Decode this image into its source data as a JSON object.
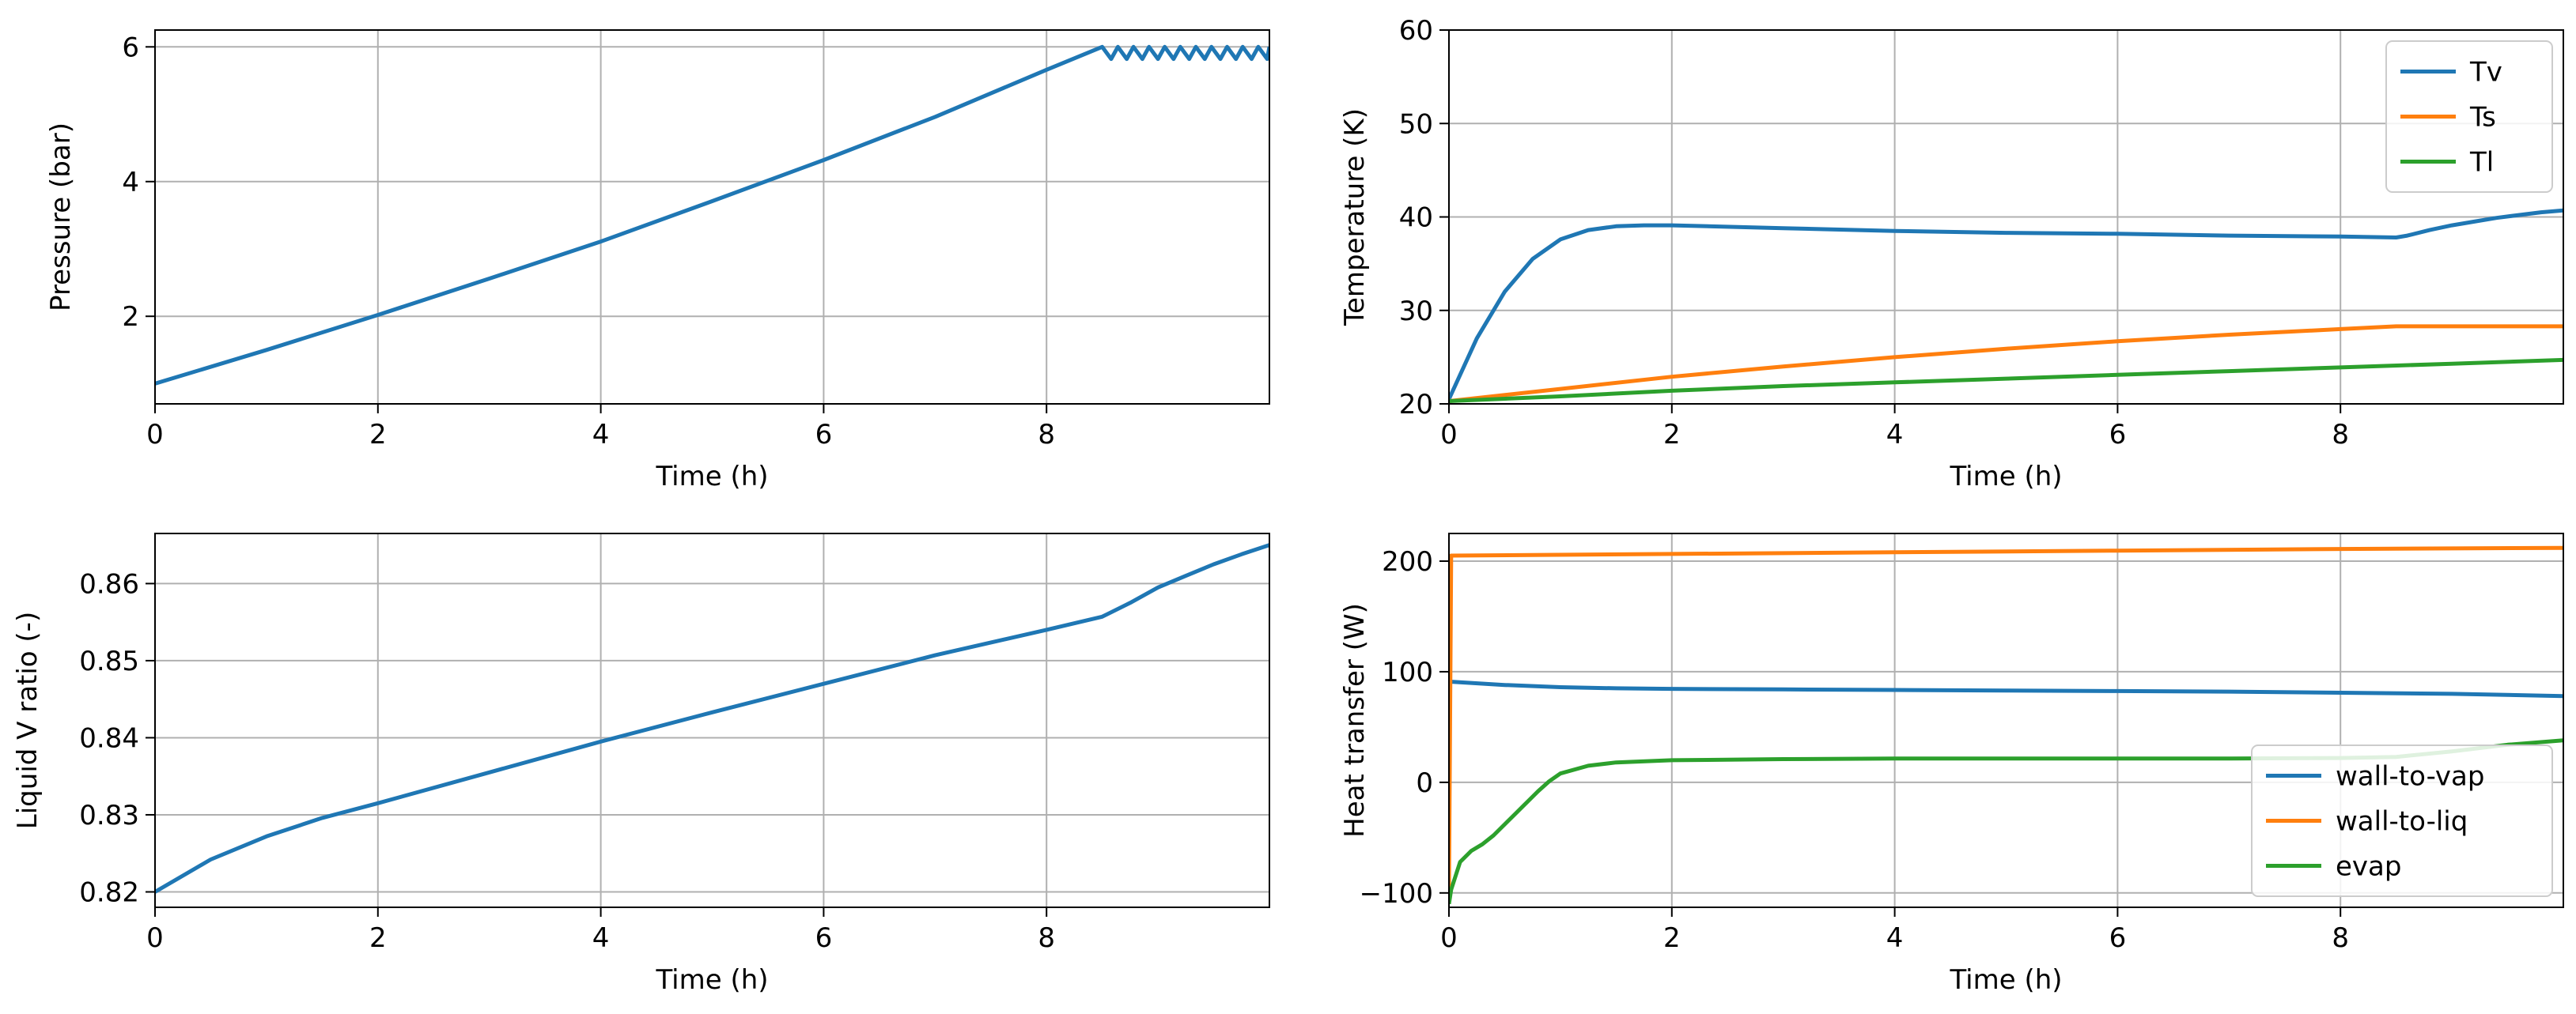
{
  "chart_data": [
    {
      "type": "line",
      "panel": "pressure",
      "xlabel": "Time (h)",
      "ylabel": "Pressure (bar)",
      "xlim": [
        0,
        10
      ],
      "ylim": [
        0.7,
        6.25
      ],
      "xticks": [
        0,
        2,
        4,
        6,
        8
      ],
      "yticks": [
        2,
        4,
        6
      ],
      "grid": true,
      "legend": null,
      "series": [
        {
          "name": "Pressure",
          "color": "#1f77b4",
          "x": [
            0,
            1,
            2,
            3,
            4,
            5,
            6,
            7,
            8,
            8.5,
            8.58,
            8.64,
            8.72,
            8.78,
            8.86,
            8.92,
            9.0,
            9.06,
            9.14,
            9.2,
            9.28,
            9.34,
            9.42,
            9.48,
            9.56,
            9.62,
            9.7,
            9.76,
            9.84,
            9.9,
            9.98,
            10.0
          ],
          "y": [
            1.0,
            1.5,
            2.02,
            2.56,
            3.11,
            3.71,
            4.32,
            4.96,
            5.66,
            6.0,
            5.82,
            6.0,
            5.82,
            6.0,
            5.82,
            6.0,
            5.82,
            6.0,
            5.82,
            6.0,
            5.82,
            6.0,
            5.82,
            6.0,
            5.82,
            6.0,
            5.82,
            6.0,
            5.82,
            6.0,
            5.82,
            6.0
          ]
        }
      ]
    },
    {
      "type": "line",
      "panel": "temperature",
      "xlabel": "Time (h)",
      "ylabel": "Temperature (K)",
      "xlim": [
        0,
        10
      ],
      "ylim": [
        20,
        60
      ],
      "xticks": [
        0,
        2,
        4,
        6,
        8
      ],
      "yticks": [
        20,
        30,
        40,
        50,
        60
      ],
      "grid": true,
      "legend": "upper-right",
      "series": [
        {
          "name": "Tv",
          "color": "#1f77b4",
          "x": [
            0,
            0.25,
            0.5,
            0.75,
            1.0,
            1.25,
            1.5,
            1.75,
            2.0,
            3.0,
            4.0,
            5.0,
            6.0,
            7.0,
            8.0,
            8.5,
            8.6,
            8.8,
            9.0,
            9.2,
            9.4,
            9.6,
            9.8,
            10.0
          ],
          "y": [
            20.5,
            27.0,
            32.0,
            35.5,
            37.6,
            38.6,
            39.0,
            39.1,
            39.1,
            38.8,
            38.5,
            38.3,
            38.2,
            38.0,
            37.9,
            37.8,
            38.0,
            38.6,
            39.1,
            39.5,
            39.9,
            40.2,
            40.5,
            40.7
          ]
        },
        {
          "name": "Ts",
          "color": "#ff7f0e",
          "x": [
            0,
            1,
            2,
            3,
            4,
            5,
            6,
            7,
            8,
            8.5,
            9,
            9.5,
            10
          ],
          "y": [
            20.3,
            21.6,
            22.9,
            24.0,
            25.0,
            25.9,
            26.7,
            27.4,
            28.0,
            28.3,
            28.3,
            28.3,
            28.3
          ]
        },
        {
          "name": "Tl",
          "color": "#2ca02c",
          "x": [
            0,
            1,
            2,
            3,
            4,
            5,
            6,
            7,
            8,
            9,
            10
          ],
          "y": [
            20.3,
            20.8,
            21.4,
            21.9,
            22.3,
            22.7,
            23.1,
            23.5,
            23.9,
            24.3,
            24.7
          ]
        }
      ]
    },
    {
      "type": "line",
      "panel": "liquid-ratio",
      "xlabel": "Time (h)",
      "ylabel": "Liquid V ratio (-)",
      "xlim": [
        0,
        10
      ],
      "ylim": [
        0.818,
        0.8665
      ],
      "xticks": [
        0,
        2,
        4,
        6,
        8
      ],
      "yticks": [
        0.82,
        0.83,
        0.84,
        0.85,
        0.86
      ],
      "grid": true,
      "legend": null,
      "series": [
        {
          "name": "Liquid V ratio",
          "color": "#1f77b4",
          "x": [
            0,
            0.5,
            1,
            1.5,
            2,
            3,
            4,
            5,
            6,
            7,
            8,
            8.5,
            8.75,
            9.0,
            9.25,
            9.5,
            9.75,
            10.0
          ],
          "y": [
            0.82,
            0.8242,
            0.8272,
            0.8296,
            0.8315,
            0.8355,
            0.8395,
            0.8433,
            0.847,
            0.8507,
            0.854,
            0.8557,
            0.8575,
            0.8595,
            0.861,
            0.8625,
            0.8638,
            0.865
          ]
        }
      ]
    },
    {
      "type": "line",
      "panel": "heat-transfer",
      "xlabel": "Time (h)",
      "ylabel": "Heat transfer (W)",
      "xlim": [
        0,
        10
      ],
      "ylim": [
        -113,
        225
      ],
      "xticks": [
        0,
        2,
        4,
        6,
        8
      ],
      "yticks": [
        -100,
        0,
        100,
        200
      ],
      "grid": true,
      "legend": "lower-right",
      "series": [
        {
          "name": "wall-to-vap",
          "color": "#1f77b4",
          "x": [
            0,
            0.01,
            0.5,
            1,
            1.5,
            2,
            3,
            4,
            5,
            6,
            7,
            8,
            9,
            10
          ],
          "y": [
            60,
            91,
            88,
            86,
            85,
            84.5,
            84,
            83.5,
            83,
            82.5,
            82,
            81,
            80,
            78
          ]
        },
        {
          "name": "wall-to-liq",
          "color": "#ff7f0e",
          "x": [
            0,
            0.02,
            2,
            4,
            6,
            8,
            10
          ],
          "y": [
            -100,
            205,
            206.5,
            208,
            209.5,
            211,
            212
          ]
        },
        {
          "name": "evap",
          "color": "#2ca02c",
          "x": [
            0,
            0.02,
            0.1,
            0.2,
            0.3,
            0.4,
            0.5,
            0.6,
            0.7,
            0.8,
            0.9,
            1.0,
            1.25,
            1.5,
            2,
            3,
            4,
            5,
            6,
            7,
            8,
            8.5,
            9,
            9.5,
            10
          ],
          "y": [
            -110,
            -97,
            -72,
            -62,
            -56,
            -48,
            -38,
            -28,
            -18,
            -8,
            1,
            8,
            15,
            18,
            20,
            21,
            21.5,
            21.5,
            21.5,
            21.5,
            22,
            23,
            28,
            34,
            38
          ]
        }
      ]
    }
  ]
}
